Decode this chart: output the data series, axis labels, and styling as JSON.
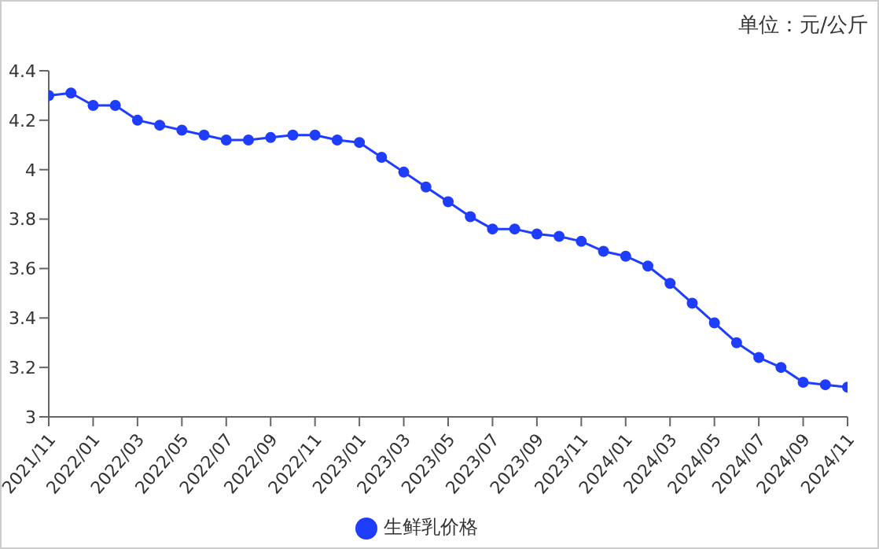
{
  "chart_data": {
    "type": "line",
    "ylabel": "单位：元/公斤",
    "categories": [
      "2021/11",
      null,
      "2022/01",
      null,
      "2022/03",
      null,
      "2022/05",
      null,
      "2022/07",
      null,
      "2022/09",
      null,
      "2022/11",
      null,
      "2023/01",
      null,
      "2023/03",
      null,
      "2023/05",
      null,
      "2023/07",
      null,
      "2023/09",
      null,
      "2023/11",
      null,
      "2024/01",
      null,
      "2024/03",
      null,
      "2024/05",
      null,
      "2024/07",
      null,
      "2024/09",
      null,
      "2024/11"
    ],
    "series": [
      {
        "name": "生鲜乳价格",
        "color": "#1f3dff",
        "values": [
          4.3,
          4.31,
          4.26,
          4.26,
          4.2,
          4.18,
          4.16,
          4.14,
          4.12,
          4.12,
          4.13,
          4.14,
          4.14,
          4.12,
          4.11,
          4.05,
          3.99,
          3.93,
          3.87,
          3.81,
          3.76,
          3.76,
          3.74,
          3.73,
          3.71,
          3.67,
          3.65,
          3.61,
          3.54,
          3.46,
          3.38,
          3.3,
          3.24,
          3.2,
          3.14,
          3.13,
          3.12
        ]
      }
    ],
    "ylim": [
      3,
      4.4
    ],
    "yticks": [
      3,
      3.2,
      3.4,
      3.6,
      3.8,
      4,
      4.2,
      4.4
    ],
    "legend": "bottom",
    "marker": "circle",
    "line_style": "solid"
  }
}
